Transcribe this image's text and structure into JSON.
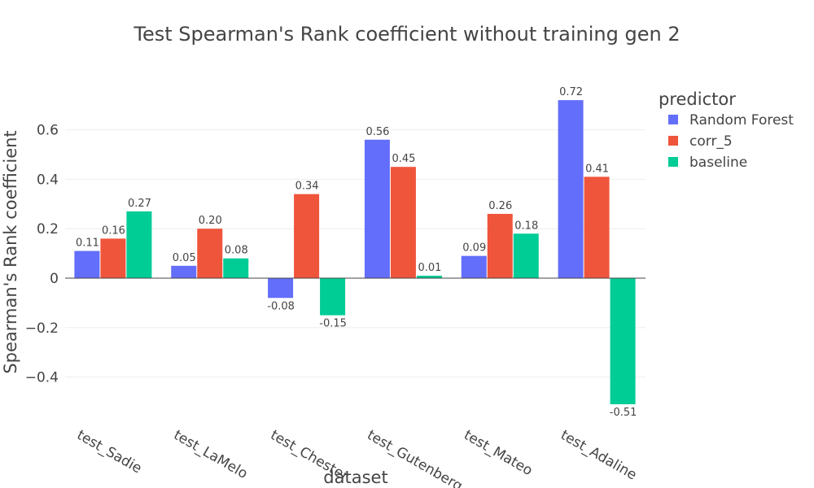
{
  "chart_data": {
    "type": "bar",
    "title": "Test Spearman's Rank coefficient without training gen 2",
    "xlabel": "dataset",
    "ylabel": "Spearman's Rank coefficient",
    "categories": [
      "test_Sadie",
      "test_LaMelo",
      "test_Chester",
      "test_Gutenberg",
      "test_Mateo",
      "test_Adaline"
    ],
    "series": [
      {
        "name": "Random Forest",
        "color": "#636efa",
        "values": [
          0.11,
          0.05,
          -0.08,
          0.56,
          0.09,
          0.72
        ],
        "labels": [
          "0.11",
          "0.05",
          "-0.08",
          "0.56",
          "0.09",
          "0.72"
        ]
      },
      {
        "name": "corr_5",
        "color": "#ef553b",
        "values": [
          0.16,
          0.2,
          0.34,
          0.45,
          0.26,
          0.41
        ],
        "labels": [
          "0.16",
          "0.20",
          "0.34",
          "0.45",
          "0.26",
          "0.41"
        ]
      },
      {
        "name": "baseline",
        "color": "#00cc96",
        "values": [
          0.27,
          0.08,
          -0.15,
          0.01,
          0.18,
          -0.51
        ],
        "labels": [
          "0.27",
          "0.08",
          "-0.15",
          "0.01",
          "0.18",
          "-0.51"
        ]
      }
    ],
    "ylim": [
      -0.55,
      0.8
    ],
    "yticks": [
      -0.4,
      -0.2,
      0,
      0.2,
      0.4,
      0.6
    ],
    "ytick_labels": [
      "−0.4",
      "−0.2",
      "0",
      "0.2",
      "0.4",
      "0.6"
    ],
    "grid": true,
    "legend": {
      "title": "predictor",
      "placement": "top-right"
    }
  }
}
